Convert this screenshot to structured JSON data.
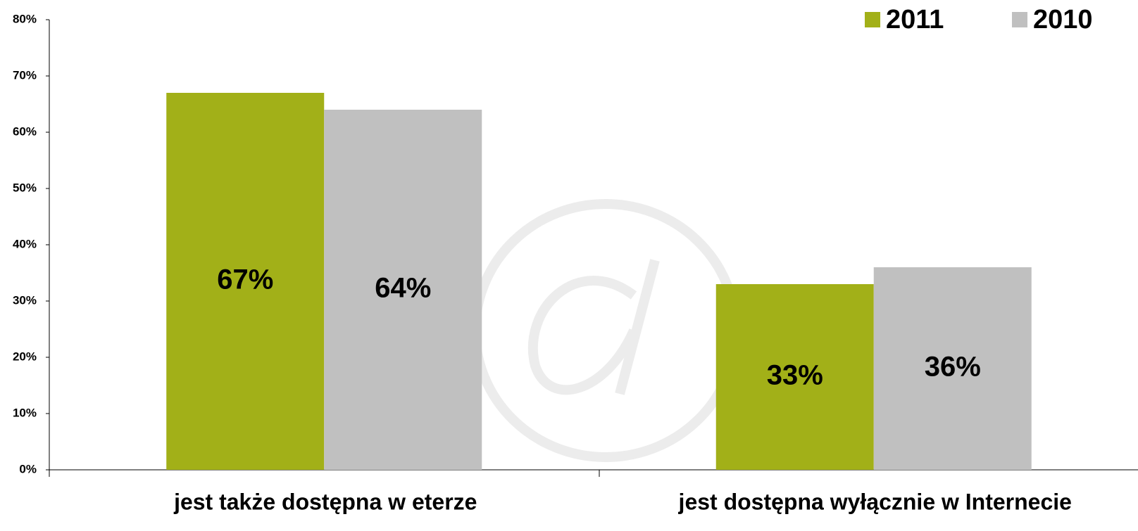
{
  "chart_data": {
    "type": "bar",
    "categories": [
      "jest także dostępna w eterze",
      "jest dostępna wyłącznie w Internecie"
    ],
    "series": [
      {
        "name": "2011",
        "color": "#a2b018",
        "values": [
          67,
          33
        ],
        "value_labels": [
          "67%",
          "33%"
        ]
      },
      {
        "name": "2010",
        "color": "#c0c0c0",
        "values": [
          64,
          36
        ],
        "value_labels": [
          "64%",
          "36%"
        ]
      }
    ],
    "ylim": [
      0,
      80
    ],
    "yticks": [
      {
        "value": 0,
        "label": "0%"
      },
      {
        "value": 10,
        "label": "10%"
      },
      {
        "value": 20,
        "label": "20%"
      },
      {
        "value": 30,
        "label": "30%"
      },
      {
        "value": 40,
        "label": "40%"
      },
      {
        "value": 50,
        "label": "50%"
      },
      {
        "value": 60,
        "label": "60%"
      },
      {
        "value": 70,
        "label": "70%"
      },
      {
        "value": 80,
        "label": "80%"
      }
    ],
    "grid": false,
    "legend": "upper right"
  }
}
